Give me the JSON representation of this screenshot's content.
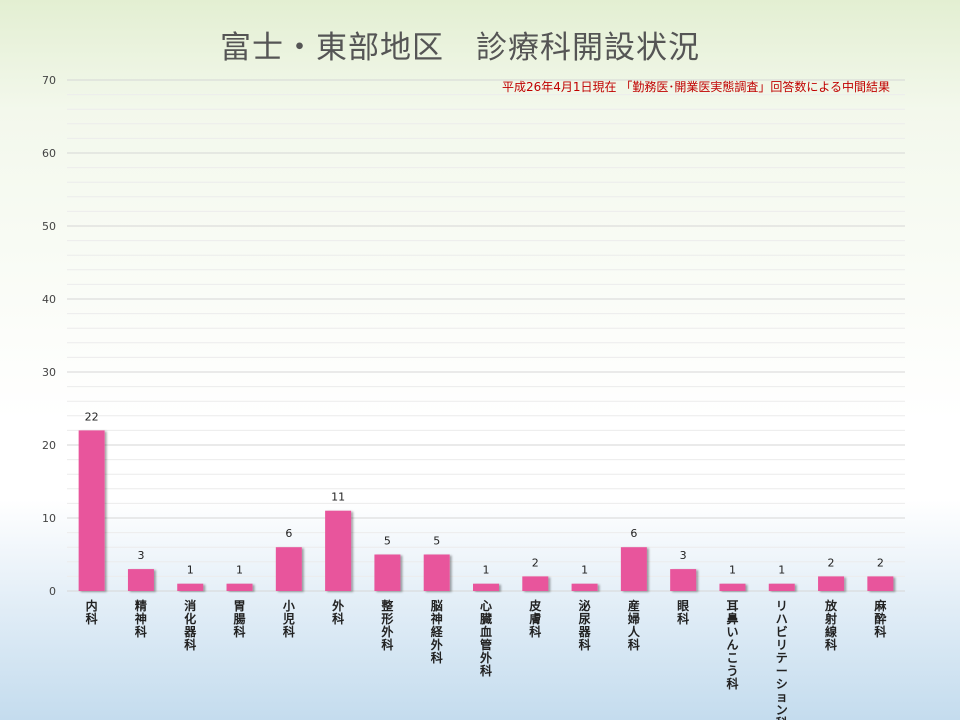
{
  "chart_data": {
    "type": "bar",
    "title": "富士・東部地区　診療科開設状況",
    "subtitle": "平成26年4月1日現在 「勤務医･開業医実態調査」回答数による中間結果",
    "categories": [
      "内科",
      "精神科",
      "消化器科",
      "胃腸科",
      "小児科",
      "外科",
      "整形外科",
      "脳神経外科",
      "心臓血管外科",
      "皮膚科",
      "泌尿器科",
      "産婦人科",
      "眼科",
      "耳鼻いんこう科",
      "リハビリテーション科",
      "放射線科",
      "麻酔科"
    ],
    "values": [
      22,
      3,
      1,
      1,
      6,
      11,
      5,
      5,
      1,
      2,
      1,
      6,
      3,
      1,
      1,
      2,
      2
    ],
    "ylim": [
      0,
      70
    ],
    "yticks": [
      0,
      10,
      20,
      30,
      40,
      50,
      60,
      70
    ],
    "xlabel": "",
    "ylabel": "",
    "grid": true,
    "bar_color": "#e8559c"
  }
}
